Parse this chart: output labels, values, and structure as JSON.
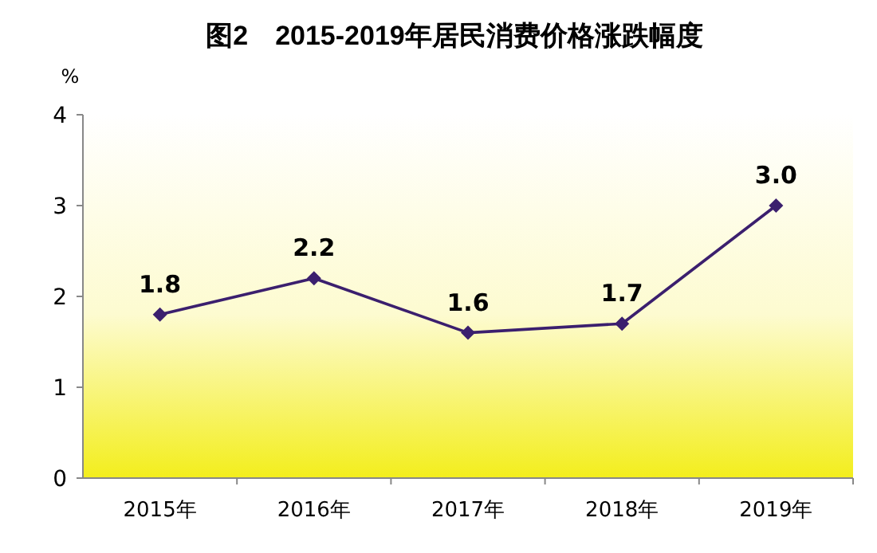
{
  "chart_data": {
    "type": "line",
    "title": "图2　2015-2019年居民消费价格涨跌幅度",
    "ylabel": "%",
    "categories": [
      "2015年",
      "2016年",
      "2017年",
      "2018年",
      "2019年"
    ],
    "series": [
      {
        "color": "#3b1f6e",
        "values": [
          1.8,
          2.2,
          1.6,
          1.7,
          3.0
        ],
        "value_labels": [
          "1.8",
          "2.2",
          "1.6",
          "1.7",
          "3.0"
        ]
      }
    ],
    "ylim": [
      0,
      4
    ],
    "yticks": [
      0,
      1,
      2,
      3,
      4
    ],
    "grid": false,
    "marker": "diamond",
    "line_style": "solid"
  }
}
